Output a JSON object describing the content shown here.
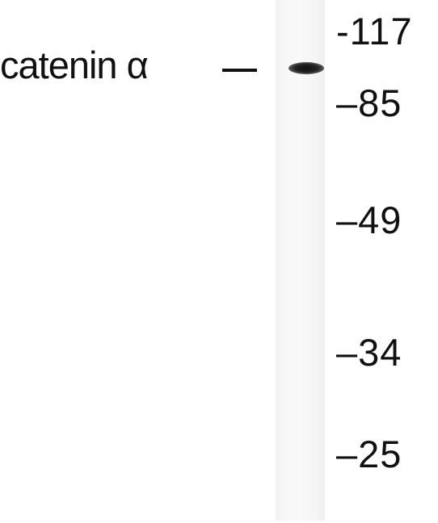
{
  "blot": {
    "protein_label": "catenin α",
    "band_marker": "–",
    "mw_markers": [
      {
        "label": "-117"
      },
      {
        "label": "–85"
      },
      {
        "label": "–49"
      },
      {
        "label": "–34"
      },
      {
        "label": "–25"
      }
    ]
  },
  "colors": {
    "background": "#ffffff",
    "lane": "#f6f6f6",
    "band": "#151515",
    "text": "#111111"
  }
}
